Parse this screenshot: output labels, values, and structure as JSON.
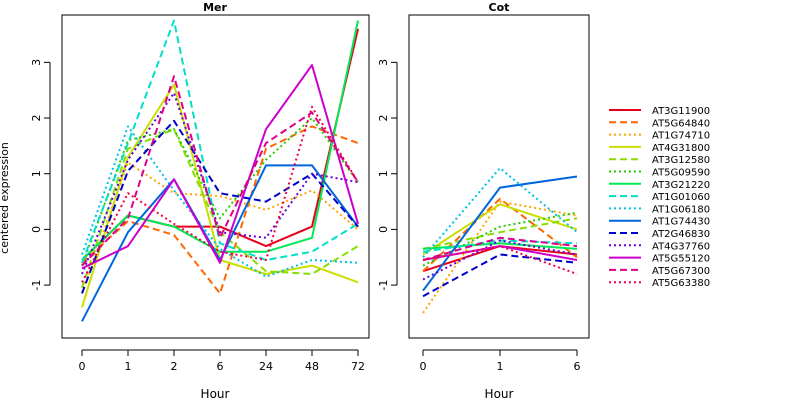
{
  "chart_data": [
    {
      "type": "line",
      "title": "Mer",
      "xlabel": "Hour",
      "ylabel": "centered expression",
      "x": [
        "0",
        "1",
        "2",
        "6",
        "24",
        "48",
        "72"
      ],
      "ylim": [
        -1.95,
        3.85
      ],
      "yticks": [
        "-1",
        "0",
        "1",
        "2",
        "3"
      ],
      "grid": false,
      "series": [
        {
          "name": "AT3G11900",
          "color": "#e8001a",
          "dash": "solid",
          "values": [
            -0.55,
            0.25,
            0.05,
            0.05,
            -0.3,
            0.05,
            3.6
          ]
        },
        {
          "name": "AT5G64840",
          "color": "#ff6600",
          "dash": "dashed",
          "values": [
            -0.6,
            0.15,
            -0.1,
            -1.15,
            1.45,
            1.85,
            1.55
          ]
        },
        {
          "name": "AT1G74710",
          "color": "#ffa500",
          "dash": "dotted",
          "values": [
            -1.15,
            1.2,
            0.65,
            0.6,
            0.35,
            0.7,
            0.0
          ]
        },
        {
          "name": "AT4G31800",
          "color": "#ccdd00",
          "dash": "solid",
          "values": [
            -1.4,
            1.3,
            2.6,
            -0.55,
            -0.8,
            -0.65,
            -0.95
          ]
        },
        {
          "name": "AT3G12580",
          "color": "#88dd00",
          "dash": "dashed",
          "values": [
            -1.05,
            1.45,
            1.8,
            -0.05,
            -0.75,
            -0.8,
            -0.3
          ]
        },
        {
          "name": "AT5G09590",
          "color": "#22cc00",
          "dash": "dotted",
          "values": [
            -0.65,
            1.6,
            1.8,
            0.2,
            1.25,
            2.0,
            0.85
          ]
        },
        {
          "name": "AT3G21220",
          "color": "#00e855",
          "dash": "solid",
          "values": [
            -0.55,
            0.25,
            0.05,
            -0.4,
            -0.4,
            -0.15,
            3.75
          ]
        },
        {
          "name": "AT1G01060",
          "color": "#00e0c8",
          "dash": "dashed",
          "values": [
            -0.6,
            1.55,
            3.75,
            -0.25,
            -0.55,
            -0.4,
            0.1
          ]
        },
        {
          "name": "AT1G06180",
          "color": "#00c0e8",
          "dash": "dotted",
          "values": [
            -0.45,
            1.85,
            0.7,
            -0.35,
            -0.85,
            -0.55,
            -0.6
          ]
        },
        {
          "name": "AT1G74430",
          "color": "#0066dd",
          "dash": "solid",
          "values": [
            -1.65,
            -0.05,
            0.9,
            -0.55,
            1.15,
            1.15,
            0.05
          ]
        },
        {
          "name": "AT2G46830",
          "color": "#0000cc",
          "dash": "dashed",
          "values": [
            -1.15,
            1.05,
            1.95,
            0.65,
            0.5,
            1.0,
            0.05
          ]
        },
        {
          "name": "AT4G37760",
          "color": "#6600dd",
          "dash": "dotted",
          "values": [
            -0.8,
            1.25,
            2.45,
            -0.05,
            -0.15,
            1.0,
            0.85
          ]
        },
        {
          "name": "AT5G55120",
          "color": "#cc00cc",
          "dash": "solid",
          "values": [
            -0.7,
            -0.3,
            0.9,
            -0.6,
            1.8,
            2.95,
            0.1
          ]
        },
        {
          "name": "AT5G67300",
          "color": "#dd0088",
          "dash": "dashed",
          "values": [
            -0.65,
            0.2,
            2.75,
            -0.15,
            1.55,
            2.1,
            0.85
          ]
        },
        {
          "name": "AT5G63380",
          "color": "#ee0044",
          "dash": "dotted",
          "values": [
            -0.95,
            0.65,
            0.1,
            -0.4,
            -0.55,
            2.2,
            0.85
          ]
        }
      ]
    },
    {
      "type": "line",
      "title": "Cot",
      "xlabel": "Hour",
      "ylabel": "",
      "x": [
        "0",
        "1",
        "6"
      ],
      "ylim": [
        -1.95,
        3.85
      ],
      "yticks": [
        "-1",
        "0",
        "1",
        "2",
        "3"
      ],
      "grid": false,
      "series": [
        {
          "name": "AT3G11900",
          "color": "#e8001a",
          "dash": "solid",
          "values": [
            -0.75,
            -0.3,
            -0.45
          ]
        },
        {
          "name": "AT5G64840",
          "color": "#ff6600",
          "dash": "dashed",
          "values": [
            -0.75,
            0.55,
            -0.5
          ]
        },
        {
          "name": "AT1G74710",
          "color": "#ffa500",
          "dash": "dotted",
          "values": [
            -1.5,
            0.5,
            0.25
          ]
        },
        {
          "name": "AT4G31800",
          "color": "#ccdd00",
          "dash": "solid",
          "values": [
            -0.45,
            0.45,
            0.0
          ]
        },
        {
          "name": "AT3G12580",
          "color": "#88dd00",
          "dash": "dashed",
          "values": [
            -0.35,
            -0.05,
            0.2
          ]
        },
        {
          "name": "AT5G09590",
          "color": "#22cc00",
          "dash": "dotted",
          "values": [
            -0.65,
            0.05,
            0.3
          ]
        },
        {
          "name": "AT3G21220",
          "color": "#00e855",
          "dash": "solid",
          "values": [
            -0.35,
            -0.25,
            -0.35
          ]
        },
        {
          "name": "AT1G01060",
          "color": "#00e0c8",
          "dash": "dashed",
          "values": [
            -0.4,
            -0.2,
            -0.25
          ]
        },
        {
          "name": "AT1G06180",
          "color": "#00c0e8",
          "dash": "dotted",
          "values": [
            -0.5,
            1.1,
            -0.05
          ]
        },
        {
          "name": "AT1G74430",
          "color": "#0066dd",
          "dash": "solid",
          "values": [
            -1.1,
            0.75,
            0.95
          ]
        },
        {
          "name": "AT2G46830",
          "color": "#0000cc",
          "dash": "dashed",
          "values": [
            -1.2,
            -0.45,
            -0.6
          ]
        },
        {
          "name": "AT4G37760",
          "color": "#6600dd",
          "dash": "dotted",
          "values": [
            -0.9,
            -0.2,
            -0.45
          ]
        },
        {
          "name": "AT5G55120",
          "color": "#cc00cc",
          "dash": "solid",
          "values": [
            -0.55,
            -0.3,
            -0.55
          ]
        },
        {
          "name": "AT5G67300",
          "color": "#dd0088",
          "dash": "dashed",
          "values": [
            -0.55,
            -0.15,
            -0.3
          ]
        },
        {
          "name": "AT5G63380",
          "color": "#ee0044",
          "dash": "dotted",
          "values": [
            -0.55,
            -0.3,
            -0.8
          ]
        }
      ]
    }
  ],
  "legend": {
    "position": "right",
    "items": [
      "AT3G11900",
      "AT5G64840",
      "AT1G74710",
      "AT4G31800",
      "AT3G12580",
      "AT5G09590",
      "AT3G21220",
      "AT1G01060",
      "AT1G06180",
      "AT1G74430",
      "AT2G46830",
      "AT4G37760",
      "AT5G55120",
      "AT5G67300",
      "AT5G63380"
    ]
  }
}
